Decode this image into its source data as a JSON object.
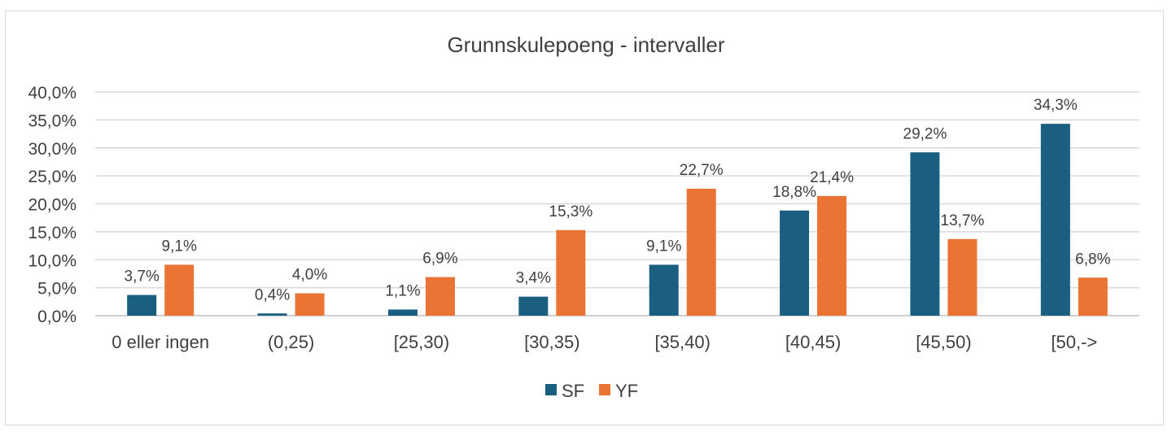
{
  "chart_data": {
    "type": "bar",
    "title": "Grunnskulepoeng - intervaller",
    "xlabel": "",
    "ylabel": "",
    "categories": [
      "0 eller ingen",
      "(0,25)",
      "[25,30)",
      "[30,35)",
      "[35,40)",
      "[40,45)",
      "[45,50)",
      "[50,->"
    ],
    "series": [
      {
        "name": "SF",
        "color": "#1a5e80",
        "values": [
          3.7,
          0.4,
          1.1,
          3.4,
          9.1,
          18.8,
          29.2,
          34.3
        ],
        "labels": [
          "3,7%",
          "0,4%",
          "1,1%",
          "3,4%",
          "9,1%",
          "18,8%",
          "29,2%",
          "34,3%"
        ]
      },
      {
        "name": "YF",
        "color": "#ea7434",
        "values": [
          9.1,
          4.0,
          6.9,
          15.3,
          22.7,
          21.4,
          13.7,
          6.8
        ],
        "labels": [
          "9,1%",
          "4,0%",
          "6,9%",
          "15,3%",
          "22,7%",
          "21,4%",
          "13,7%",
          "6,8%"
        ]
      }
    ],
    "ylim": [
      0,
      40
    ],
    "yticks": [
      0,
      5,
      10,
      15,
      20,
      25,
      30,
      35,
      40
    ],
    "ytick_labels": [
      "0,0%",
      "5,0%",
      "10,0%",
      "15,0%",
      "20,0%",
      "25,0%",
      "30,0%",
      "35,0%",
      "40,0%"
    ],
    "grid": true,
    "legend_position": "bottom"
  }
}
